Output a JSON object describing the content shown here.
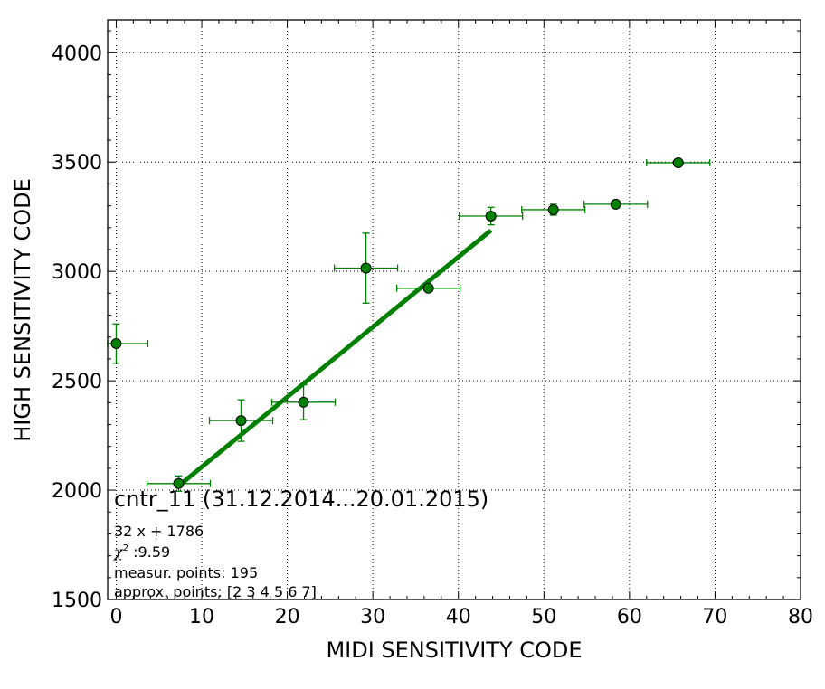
{
  "chart_data": {
    "type": "scatter",
    "xlabel": "MIDI SENSITIVITY CODE",
    "ylabel": "HIGH SENSITIVITY CODE",
    "xlim": [
      -1,
      80
    ],
    "ylim": [
      1500,
      4150
    ],
    "xticks": [
      0,
      10,
      20,
      30,
      40,
      50,
      60,
      70,
      80
    ],
    "yticks": [
      1500,
      2000,
      2500,
      3000,
      3500,
      4000
    ],
    "xtick_labels": [
      "0",
      "10",
      "20",
      "30",
      "40",
      "50",
      "60",
      "70",
      "80"
    ],
    "ytick_labels": [
      "1500",
      "2000",
      "2500",
      "3000",
      "3500",
      "4000"
    ],
    "grid": true,
    "color": "#008000",
    "points": [
      {
        "x": 0.0,
        "y": 2670,
        "xerr": 3.7,
        "yerr": 90
      },
      {
        "x": 7.3,
        "y": 2030,
        "xerr": 3.7,
        "yerr": 35
      },
      {
        "x": 14.6,
        "y": 2318,
        "xerr": 3.7,
        "yerr": 95
      },
      {
        "x": 21.9,
        "y": 2402,
        "xerr": 3.7,
        "yerr": 80
      },
      {
        "x": 29.2,
        "y": 3015,
        "xerr": 3.7,
        "yerr": 160
      },
      {
        "x": 36.5,
        "y": 2923,
        "xerr": 3.7,
        "yerr": 0
      },
      {
        "x": 43.8,
        "y": 3253,
        "xerr": 3.7,
        "yerr": 40
      },
      {
        "x": 51.1,
        "y": 3282,
        "xerr": 3.7,
        "yerr": 25
      },
      {
        "x": 58.4,
        "y": 3307,
        "xerr": 3.7,
        "yerr": 0
      },
      {
        "x": 65.7,
        "y": 3497,
        "xerr": 3.7,
        "yerr": 0
      }
    ],
    "fit_line": {
      "x0": 7.3,
      "x1": 43.8,
      "slope": 32,
      "intercept": 1786
    },
    "annotation": {
      "title": "cntr_11 (31.12.2014...20.01.2015)",
      "equation": "32 x + 1786",
      "chi2_symbol": "χ",
      "chi2_sup": "2",
      "chi2_value": " :9.59",
      "measur_points": "measur. points: 195",
      "approx_points": "approx. points: [2 3 4 5 6 7]"
    }
  }
}
